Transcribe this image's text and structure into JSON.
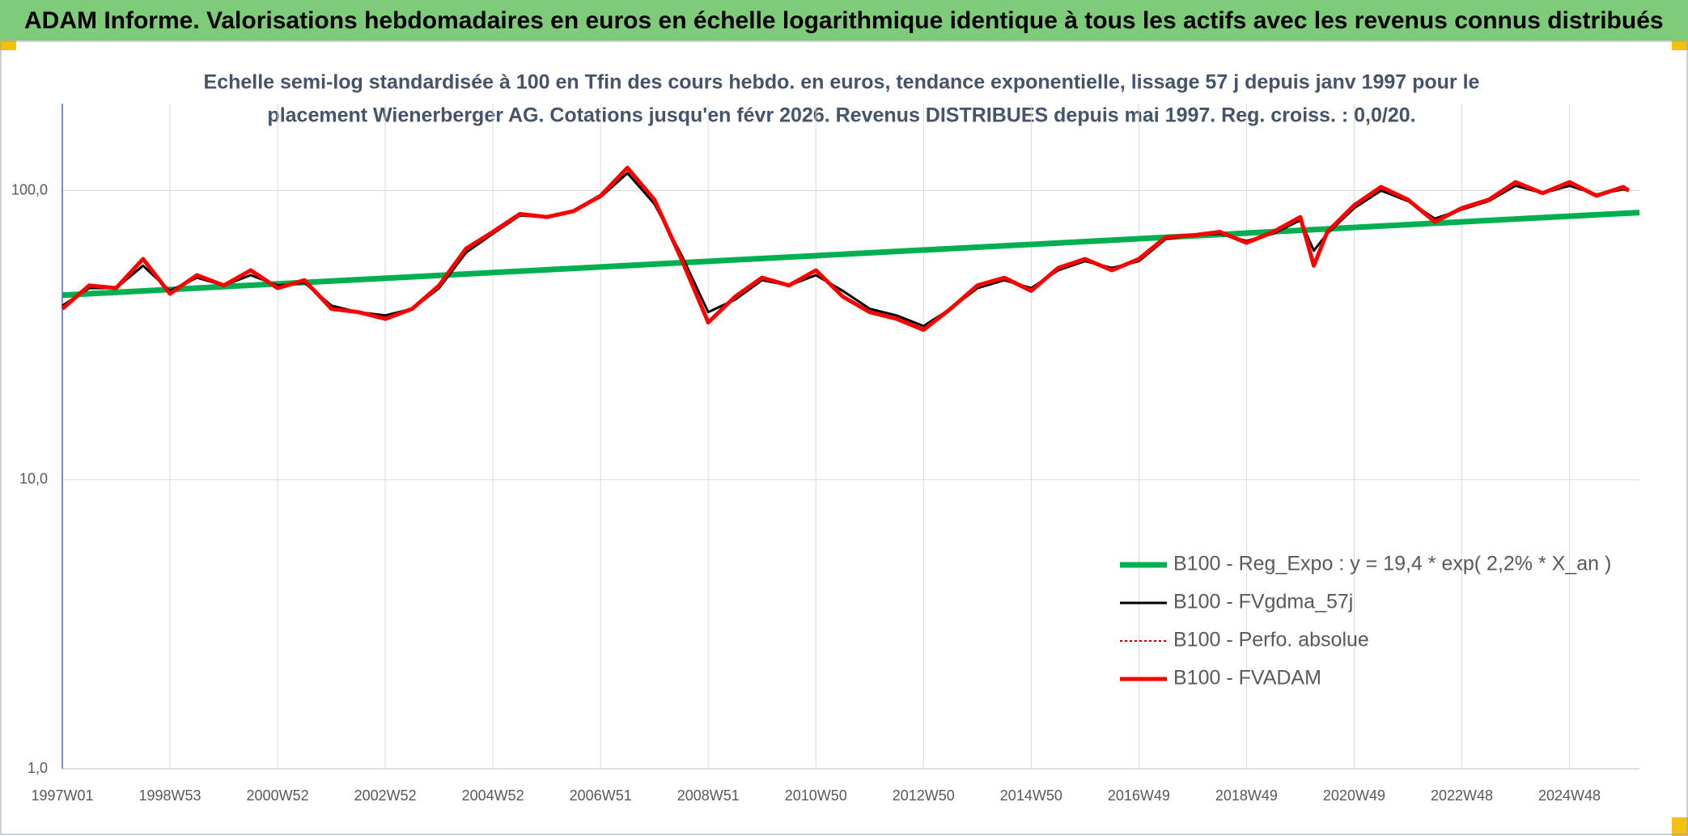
{
  "chart_data": {
    "type": "line",
    "title": "ADAM Informe. Valorisations hebdomadaires en euros en échelle logarithmique identique à tous les actifs avec les revenus connus distribués",
    "subtitle": [
      "Echelle semi-log standardisée à 100 en Tfin des cours hebdo. en euros, tendance exponentielle, lissage 57 j depuis janv 1997 pour le",
      "placement Wienerberger AG. Cotations jusqu'en févr 2026. Revenus DISTRIBUES depuis mai 1997. Reg. croiss. : 0,0/20."
    ],
    "log_scale": true,
    "grid": true,
    "legend": "lower-right",
    "xlim": [
      1997,
      2026.3
    ],
    "xticks": [
      {
        "value": 1997,
        "label": "1997W01"
      },
      {
        "value": 1999,
        "label": "1998W53"
      },
      {
        "value": 2001,
        "label": "2000W52"
      },
      {
        "value": 2003,
        "label": "2002W52"
      },
      {
        "value": 2005,
        "label": "2004W52"
      },
      {
        "value": 2007,
        "label": "2006W51"
      },
      {
        "value": 2009,
        "label": "2008W51"
      },
      {
        "value": 2011,
        "label": "2010W50"
      },
      {
        "value": 2013,
        "label": "2012W50"
      },
      {
        "value": 2015,
        "label": "2014W50"
      },
      {
        "value": 2017,
        "label": "2016W49"
      },
      {
        "value": 2019,
        "label": "2018W49"
      },
      {
        "value": 2021,
        "label": "2020W49"
      },
      {
        "value": 2023,
        "label": "2022W48"
      },
      {
        "value": 2025,
        "label": "2024W48"
      }
    ],
    "ylim": [
      1,
      200
    ],
    "yticks": [
      {
        "value": 1,
        "label": "1,0"
      },
      {
        "value": 10,
        "label": "10,0"
      },
      {
        "value": 100,
        "label": "100,0"
      }
    ],
    "x": [
      1997,
      1997.5,
      1998,
      1998.5,
      1999,
      1999.5,
      2000,
      2000.5,
      2001,
      2001.5,
      2002,
      2002.5,
      2003,
      2003.5,
      2004,
      2004.5,
      2005,
      2005.5,
      2006,
      2006.5,
      2007,
      2007.5,
      2008,
      2008.5,
      2009,
      2009.5,
      2010,
      2010.5,
      2011,
      2011.5,
      2012,
      2012.5,
      2013,
      2013.5,
      2014,
      2014.5,
      2015,
      2015.5,
      2016,
      2016.5,
      2017,
      2017.5,
      2018,
      2018.5,
      2019,
      2019.5,
      2020,
      2020.25,
      2020.5,
      2021,
      2021.5,
      2022,
      2022.5,
      2023,
      2023.5,
      2024,
      2024.5,
      2025,
      2025.5,
      2026,
      2026.1
    ],
    "series": [
      {
        "name": "B100 - Reg_Expo : y = 19,4 * exp( 2,2% *  X_an )",
        "color": "#00b050",
        "width": 7,
        "x": [
          1997,
          2026.3
        ],
        "values": [
          43.5,
          84
        ]
      },
      {
        "name": "B100 - FVgdma_57j",
        "color": "#000000",
        "width": 3,
        "values": [
          40,
          46,
          46,
          55,
          45,
          50,
          47,
          51,
          47,
          48,
          40,
          38,
          37,
          39,
          46,
          61,
          71,
          82,
          81,
          85,
          95,
          115,
          90,
          60,
          38,
          42,
          49,
          47,
          51,
          45,
          39,
          37,
          34,
          39,
          46,
          49,
          46,
          53,
          57,
          54,
          57,
          68,
          70,
          71,
          67,
          71,
          79,
          62,
          71,
          87,
          100,
          92,
          80,
          86,
          92,
          104,
          98,
          104,
          97,
          101,
          100
        ]
      },
      {
        "name": "B100 - Perfo. absolue",
        "color": "#c00000",
        "width": 2,
        "dash": true,
        "values": [
          39,
          47,
          46,
          58,
          44,
          51,
          47,
          53,
          46,
          49,
          39,
          38,
          36,
          39,
          47,
          63,
          72,
          83,
          81,
          85,
          96,
          120,
          93,
          58,
          35,
          43,
          50,
          47,
          53,
          43,
          38,
          36,
          33,
          39,
          47,
          50,
          45,
          54,
          58,
          53,
          58,
          69,
          70,
          72,
          66,
          72,
          81,
          55,
          72,
          89,
          103,
          93,
          78,
          87,
          93,
          107,
          98,
          107,
          96,
          103,
          100
        ]
      },
      {
        "name": "B100 - FVADAM",
        "color": "#ff0000",
        "width": 5,
        "values": [
          39,
          47,
          46,
          58,
          44,
          51,
          47,
          53,
          46,
          49,
          39,
          38,
          36,
          39,
          47,
          63,
          72,
          83,
          81,
          85,
          96,
          120,
          93,
          58,
          35,
          43,
          50,
          47,
          53,
          43,
          38,
          36,
          33,
          39,
          47,
          50,
          45,
          54,
          58,
          53,
          58,
          69,
          70,
          72,
          66,
          72,
          81,
          55,
          72,
          89,
          103,
          93,
          78,
          87,
          93,
          107,
          98,
          107,
          96,
          103,
          100
        ]
      }
    ]
  }
}
